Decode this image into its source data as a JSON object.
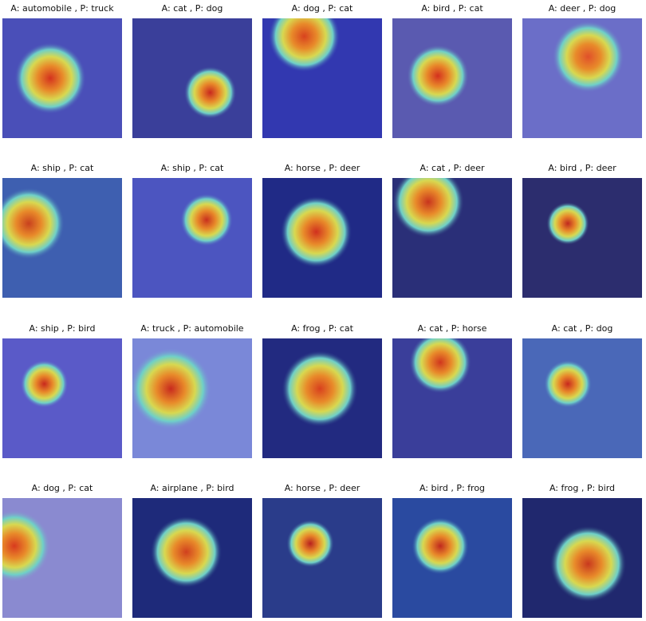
{
  "figure": {
    "images": [
      {
        "caption": "A: automobile , P: truck",
        "base": "#4a4fb8",
        "hot": "#d4321e"
      },
      {
        "caption": "A: cat , P: dog",
        "base": "#3a3f9a",
        "hot": "#c8281e"
      },
      {
        "caption": "A: dog , P: cat",
        "base": "#3238b0",
        "hot": "#d8421e"
      },
      {
        "caption": "A: bird , P: cat",
        "base": "#5a5ab0",
        "hot": "#d4301e"
      },
      {
        "caption": "A: deer , P: dog",
        "base": "#6b6ec8",
        "hot": "#e0502a"
      },
      {
        "caption": "A: ship , P: cat",
        "base": "#3e5fb0",
        "hot": "#c8401e"
      },
      {
        "caption": "A: ship , P: cat",
        "base": "#4c55c0",
        "hot": "#c8301e"
      },
      {
        "caption": "A: horse , P: deer",
        "base": "#202a86",
        "hot": "#d0301e"
      },
      {
        "caption": "A: cat , P: deer",
        "base": "#2a2f78",
        "hot": "#c8341e"
      },
      {
        "caption": "A: bird , P: deer",
        "base": "#2c2d6e",
        "hot": "#c0281e"
      },
      {
        "caption": "A: ship , P: bird",
        "base": "#5a5ac8",
        "hot": "#c8281e"
      },
      {
        "caption": "A: truck , P: automobile",
        "base": "#7a88d8",
        "hot": "#c82a1e"
      },
      {
        "caption": "A: frog , P: cat",
        "base": "#222a80",
        "hot": "#d8401e"
      },
      {
        "caption": "A: cat , P: horse",
        "base": "#3a3e9a",
        "hot": "#d0361e"
      },
      {
        "caption": "A: cat , P: dog",
        "base": "#4a68b8",
        "hot": "#c8281e"
      },
      {
        "caption": "A: dog , P: cat",
        "base": "#8a8ad0",
        "hot": "#d83a1e"
      },
      {
        "caption": "A: airplane , P: bird",
        "base": "#1e2a7a",
        "hot": "#d0401e"
      },
      {
        "caption": "A: horse , P: deer",
        "base": "#2a3c8a",
        "hot": "#b8201e"
      },
      {
        "caption": "A: bird , P: frog",
        "base": "#2a4aa0",
        "hot": "#c0281e"
      },
      {
        "caption": "A: frog , P: bird",
        "base": "#20286e",
        "hot": "#c8381e"
      }
    ]
  }
}
